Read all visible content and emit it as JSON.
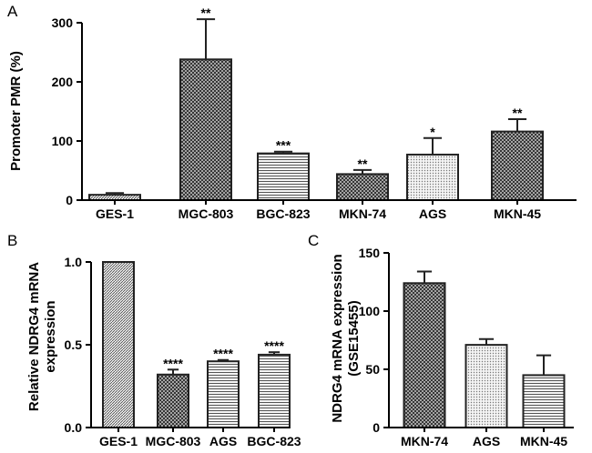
{
  "chart_data": [
    {
      "type": "bar",
      "panel": "A",
      "categories": [
        "GES-1",
        "MGC-803",
        "BGC-823",
        "MKN-74",
        "AGS",
        "MKN-45"
      ],
      "values": [
        9,
        238,
        79,
        44,
        77,
        116
      ],
      "errors": [
        3,
        68,
        3,
        7,
        28,
        21
      ],
      "significance": [
        "",
        "**",
        "***",
        "**",
        "*",
        "**"
      ],
      "ylabel": "Promoter PMR (%)",
      "ylim": [
        0,
        300
      ],
      "yticks": [
        "0",
        "100",
        "200",
        "300"
      ],
      "patterns": [
        "fine-hatch",
        "crosshatch-dense",
        "horizontal-lines",
        "crosshatch-dense",
        "dots-light",
        "crosshatch-dense"
      ]
    },
    {
      "type": "bar",
      "panel": "B",
      "categories": [
        "GES-1",
        "MGC-803",
        "AGS",
        "BGC-823"
      ],
      "values": [
        1.0,
        0.32,
        0.4,
        0.44
      ],
      "errors": [
        0,
        0.03,
        0.008,
        0.015
      ],
      "significance": [
        "",
        "****",
        "****",
        "****"
      ],
      "ylabel": "Relative NDRG4 mRNA expression",
      "ylabel_lines": [
        "Relative NDRG4 mRNA",
        "expression"
      ],
      "ylim": [
        0,
        1.0
      ],
      "yticks": [
        "0.0",
        "0.5",
        "1.0"
      ],
      "patterns": [
        "fine-hatch",
        "crosshatch-dense",
        "horizontal-lines",
        "horizontal-lines"
      ]
    },
    {
      "type": "bar",
      "panel": "C",
      "categories": [
        "MKN-74",
        "AGS",
        "MKN-45"
      ],
      "values": [
        124,
        71,
        45
      ],
      "errors": [
        10,
        5,
        17
      ],
      "significance": [
        "",
        "",
        ""
      ],
      "ylabel": "NDRG4 mRNA expression (GSE15455)",
      "ylabel_lines": [
        "NDRG4 mRNA expression",
        "(GSE15455)"
      ],
      "ylim": [
        0,
        150
      ],
      "yticks": [
        "0",
        "50",
        "100",
        "150"
      ],
      "patterns": [
        "crosshatch-dense",
        "dots-light",
        "horizontal-lines"
      ]
    }
  ]
}
